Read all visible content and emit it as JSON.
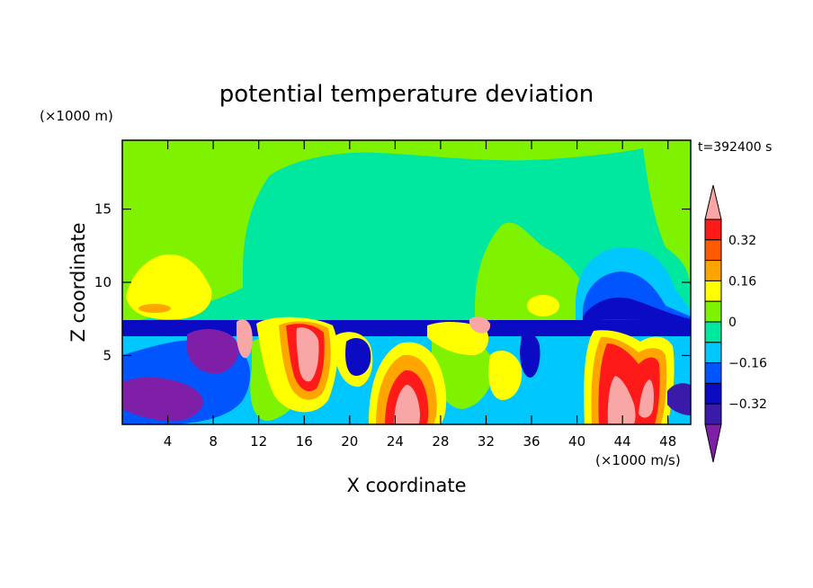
{
  "chart_data": {
    "type": "heatmap",
    "title": "potential temperature deviation",
    "xlabel": "X coordinate",
    "ylabel": "Z coordinate",
    "x_unit": "(×1000 m/s)",
    "y_unit": "(×1000 m)",
    "time_label": "t=392400 s",
    "xlim": [
      0,
      50
    ],
    "ylim": [
      0.3,
      19.7
    ],
    "x_ticks": [
      4,
      8,
      12,
      16,
      20,
      24,
      28,
      32,
      36,
      40,
      44,
      48
    ],
    "y_ticks": [
      5,
      10,
      15
    ],
    "grid": false,
    "colorbar": {
      "levels": [
        -0.48,
        -0.4,
        -0.32,
        -0.24,
        -0.16,
        -0.08,
        0,
        0.08,
        0.16,
        0.24,
        0.32,
        0.4
      ],
      "colors": [
        "#7f1fa8",
        "#3a1aa8",
        "#0b0bc4",
        "#0055ff",
        "#00c8ff",
        "#00e8a0",
        "#7ff200",
        "#ffff00",
        "#ffa500",
        "#ff5a00",
        "#ff1a1a",
        "#f8a6a6"
      ],
      "tick_values": [
        -0.32,
        -0.16,
        0,
        0.16,
        0.32
      ],
      "tick_labels": [
        "−0.32",
        "−0.16",
        "0",
        "0.16",
        "0.32"
      ]
    }
  }
}
